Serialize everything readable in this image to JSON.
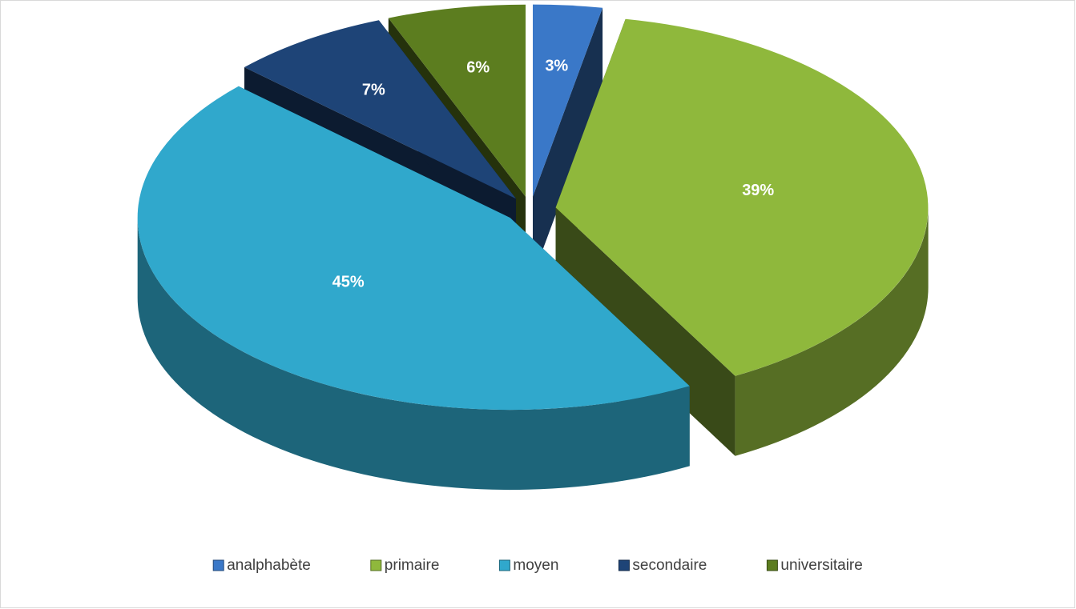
{
  "chart_data": {
    "type": "pie",
    "categories": [
      "analphabète",
      "primaire",
      "moyen",
      "secondaire",
      "universitaire"
    ],
    "values": [
      3,
      39,
      45,
      7,
      6
    ],
    "value_labels": [
      "3%",
      "39%",
      "45%",
      "7%",
      "6%"
    ],
    "colors": [
      "#3a78c8",
      "#8fb83c",
      "#30a8cc",
      "#1e4477",
      "#5c7d1f"
    ],
    "legend": "bottom"
  }
}
